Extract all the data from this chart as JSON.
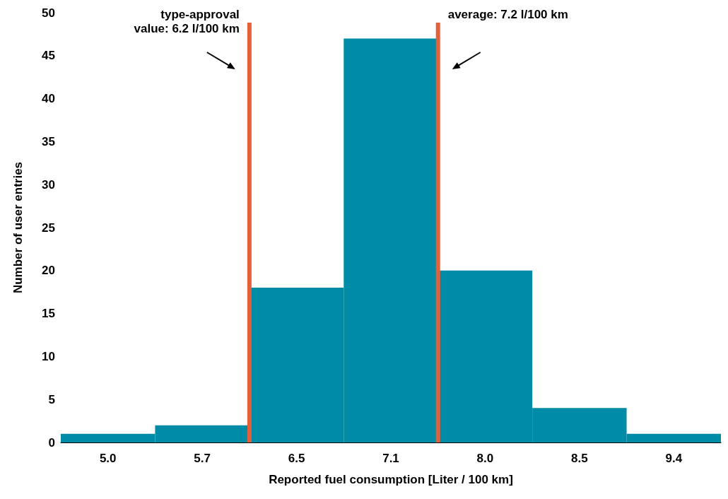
{
  "chart_data": {
    "type": "bar",
    "xlabel": "Reported fuel consumption [Liter / 100 km]",
    "ylabel": "Number of user entries",
    "categories": [
      "5.0",
      "5.7",
      "6.5",
      "7.1",
      "8.0",
      "8.5",
      "9.4"
    ],
    "values": [
      1,
      2,
      18,
      47,
      20,
      4,
      1
    ],
    "color": "#008ba6",
    "ylim": [
      0,
      50
    ],
    "yticks": [
      0,
      5,
      10,
      15,
      20,
      25,
      30,
      35,
      40,
      45,
      50
    ],
    "grid": false,
    "annotations": [
      "type-approval\nvalue: 6.2 l/100 km",
      "average: 7.2 l/100 km"
    ]
  }
}
